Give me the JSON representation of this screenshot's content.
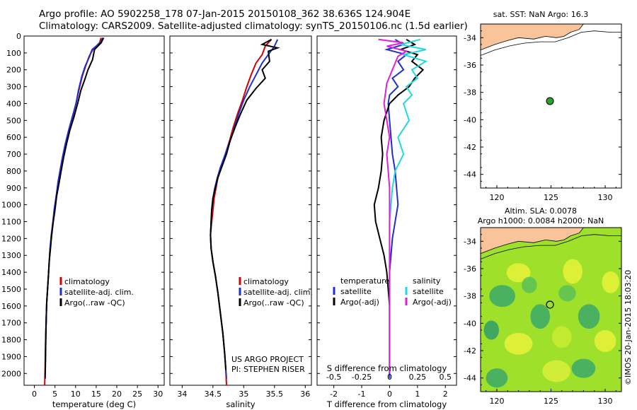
{
  "header": {
    "line1": "Argo profile: AO 5902258_178 07-Jan-2015 20150108_362 38.636S 124.904E",
    "line2": "Climatology: CARS2009. Satellite-adjusted climatology: synTS_20150106.nc (1.5d earlier)"
  },
  "colors": {
    "clim": "#d40000",
    "sat": "#1f2fd0",
    "argo": "#000000",
    "sal_sat": "#22d8e0",
    "sal_argo": "#e020d8",
    "land": "#f9c49a",
    "marker": "#29a329"
  },
  "chart_data": [
    {
      "type": "line",
      "id": "temperature",
      "xlabel": "temperature (deg C)",
      "ylabel": "",
      "xlim": [
        -2.5,
        31.5
      ],
      "ylim": [
        2070,
        0
      ],
      "xticks": [
        "0",
        "5",
        "10",
        "15",
        "20",
        "25",
        "30"
      ],
      "xtick_values": [
        0,
        5,
        10,
        15,
        20,
        25,
        30
      ],
      "yticks": [
        "0",
        "100",
        "200",
        "300",
        "400",
        "500",
        "600",
        "700",
        "800",
        "900",
        "1000",
        "1100",
        "1200",
        "1300",
        "1400",
        "1500",
        "1600",
        "1700",
        "1800",
        "1900",
        "2000"
      ],
      "ytick_values": [
        0,
        100,
        200,
        300,
        400,
        500,
        600,
        700,
        800,
        900,
        1000,
        1100,
        1200,
        1300,
        1400,
        1500,
        1600,
        1700,
        1800,
        1900,
        2000
      ],
      "legend": [
        "climatology",
        "satellite-adj. clim.",
        "Argo(..raw -QC)"
      ],
      "series": [
        {
          "name": "climatology",
          "color_key": "clim",
          "x": [
            16.2,
            15.8,
            14.2,
            13.3,
            12.4,
            11.6,
            10.8,
            10.1,
            9.3,
            8.4,
            7.6,
            6.9,
            6.3,
            5.8,
            5.3,
            4.9,
            4.5,
            4.2,
            3.8,
            3.6,
            3.4,
            3.2,
            3.0,
            2.9,
            2.8,
            2.7,
            2.65,
            2.6,
            2.55,
            2.5
          ],
          "y": [
            10,
            40,
            80,
            120,
            180,
            240,
            320,
            400,
            480,
            560,
            640,
            720,
            800,
            870,
            950,
            1030,
            1100,
            1180,
            1260,
            1340,
            1420,
            1500,
            1580,
            1660,
            1740,
            1820,
            1900,
            1980,
            2030,
            2070
          ]
        },
        {
          "name": "satellite-adj. clim.",
          "color_key": "sat",
          "x": [
            16.6,
            16.0,
            14.0,
            13.4,
            12.3,
            11.5,
            10.7,
            10.1,
            9.2,
            8.3,
            7.5,
            6.8,
            6.2,
            5.7,
            5.3,
            4.8,
            4.5,
            4.1,
            3.8,
            3.6,
            3.4,
            3.2,
            3.0,
            2.9,
            2.8,
            2.75,
            2.7,
            2.65,
            2.6
          ],
          "y": [
            10,
            40,
            80,
            120,
            180,
            240,
            320,
            400,
            480,
            560,
            640,
            720,
            800,
            870,
            950,
            1030,
            1100,
            1180,
            1260,
            1340,
            1420,
            1500,
            1580,
            1660,
            1740,
            1820,
            1900,
            1980,
            2030
          ]
        },
        {
          "name": "Argo(..raw -QC)",
          "color_key": "argo",
          "x": [
            16.8,
            16.2,
            14.6,
            14.1,
            13.0,
            12.2,
            11.3,
            10.5,
            9.6,
            8.6,
            7.8,
            7.1,
            6.5,
            6.0,
            5.4,
            5.0,
            4.6,
            4.2,
            3.9,
            3.6,
            3.4,
            3.2,
            3.0,
            2.9,
            2.8,
            2.75,
            2.7,
            2.65,
            2.6
          ],
          "y": [
            10,
            40,
            80,
            140,
            200,
            260,
            320,
            400,
            480,
            560,
            640,
            720,
            800,
            870,
            950,
            1030,
            1100,
            1180,
            1260,
            1340,
            1420,
            1500,
            1580,
            1660,
            1740,
            1820,
            1900,
            1980,
            2030
          ]
        }
      ]
    },
    {
      "type": "line",
      "id": "salinity",
      "xlabel": "salinity",
      "xlim": [
        33.8,
        36.1
      ],
      "ylim": [
        2070,
        0
      ],
      "xticks": [
        "34",
        "34.5",
        "35",
        "35.5",
        "36"
      ],
      "xtick_values": [
        34,
        34.5,
        35,
        35.5,
        36
      ],
      "legend": [
        "climatology",
        "satellite-adj. clim.",
        "Argo(..raw -QC)"
      ],
      "note": [
        "US ARGO PROJECT",
        "PI: STEPHEN RISER"
      ],
      "series": [
        {
          "name": "climatology",
          "color_key": "clim",
          "x": [
            35.45,
            35.35,
            35.3,
            35.2,
            35.12,
            35.05,
            34.98,
            34.9,
            34.83,
            34.77,
            34.7,
            34.63,
            34.58,
            34.55,
            34.52,
            34.5,
            34.48,
            34.46,
            34.47,
            34.5,
            34.54,
            34.58,
            34.62,
            34.66,
            34.69,
            34.71,
            34.72
          ],
          "y": [
            20,
            60,
            110,
            160,
            230,
            300,
            380,
            460,
            540,
            620,
            700,
            780,
            840,
            900,
            960,
            1030,
            1100,
            1180,
            1260,
            1340,
            1420,
            1520,
            1640,
            1760,
            1880,
            1980,
            2070
          ]
        },
        {
          "name": "satellite-adj. clim.",
          "color_key": "sat",
          "x": [
            35.55,
            35.5,
            35.4,
            35.3,
            35.2,
            35.1,
            35.0,
            34.92,
            34.85,
            34.78,
            34.7,
            34.62,
            34.57,
            34.53,
            34.5,
            34.48,
            34.47,
            34.46,
            34.47,
            34.5,
            34.54,
            34.58,
            34.62,
            34.66,
            34.69,
            34.71,
            34.72
          ],
          "y": [
            20,
            60,
            110,
            160,
            230,
            300,
            380,
            460,
            540,
            620,
            700,
            780,
            840,
            900,
            960,
            1030,
            1100,
            1180,
            1260,
            1340,
            1420,
            1520,
            1640,
            1760,
            1880,
            1980,
            2030
          ]
        },
        {
          "name": "Argo(..raw -QC)",
          "color_key": "argo",
          "x": [
            35.45,
            35.3,
            35.55,
            35.4,
            35.42,
            35.3,
            35.35,
            35.2,
            35.05,
            34.95,
            34.86,
            34.78,
            34.72,
            34.64,
            34.58,
            34.54,
            34.5,
            34.48,
            34.47,
            34.46,
            34.47,
            34.5,
            34.54,
            34.58,
            34.62,
            34.66,
            34.69,
            34.71
          ],
          "y": [
            20,
            50,
            70,
            90,
            150,
            200,
            250,
            310,
            380,
            460,
            540,
            620,
            700,
            780,
            840,
            900,
            960,
            1030,
            1100,
            1180,
            1260,
            1340,
            1420,
            1520,
            1640,
            1760,
            1880,
            1980
          ]
        }
      ]
    },
    {
      "type": "line",
      "id": "difference",
      "xlabel": "T difference from climatology",
      "xlabel_top": "S difference from climatology",
      "xlim": [
        -2.6,
        2.4
      ],
      "ylim": [
        2070,
        0
      ],
      "xticks": [
        "-2",
        "-1",
        "0",
        "1",
        "2"
      ],
      "xtick_values": [
        -2,
        -1,
        0,
        1,
        2
      ],
      "sticks": [
        "-0.5",
        "-0.25",
        "0",
        "0.25",
        "0.5"
      ],
      "stick_values": [
        -2,
        -1,
        0,
        1,
        2
      ],
      "legend_t_title": "temperature",
      "legend_s_title": "salinity",
      "legend": [
        "satellite",
        "Argo(-adj)",
        "satellite",
        "Argo(-adj)"
      ],
      "series": [
        {
          "name": "T satellite",
          "color_key": "sat",
          "x": [
            0.2,
            0.5,
            -0.1,
            0.6,
            0.3,
            0.5,
            0.1,
            0.3,
            0.0,
            -0.05,
            0.0,
            0.05,
            0.1,
            0.2,
            0.25,
            0.3,
            0.2,
            0.1,
            0.05,
            0.0,
            0.0,
            0.0,
            0.0,
            0.0,
            0.0,
            0.0,
            0.0
          ],
          "y": [
            20,
            50,
            80,
            110,
            150,
            200,
            250,
            300,
            350,
            400,
            500,
            600,
            700,
            800,
            900,
            1000,
            1100,
            1200,
            1300,
            1400,
            1500,
            1600,
            1700,
            1800,
            1900,
            2000,
            2030
          ]
        },
        {
          "name": "T Argo(-adj)",
          "color_key": "argo",
          "x": [
            0.6,
            0.9,
            0.4,
            1.0,
            0.8,
            1.2,
            0.9,
            0.7,
            0.3,
            0.0,
            -0.2,
            -0.3,
            -0.25,
            -0.3,
            -0.4,
            -0.55,
            -0.5,
            -0.35,
            -0.2,
            -0.1,
            -0.05,
            0.0,
            0.0,
            0.0,
            0.0,
            0.0
          ],
          "y": [
            20,
            50,
            80,
            110,
            150,
            200,
            250,
            300,
            350,
            400,
            500,
            600,
            700,
            800,
            900,
            1000,
            1100,
            1200,
            1300,
            1400,
            1500,
            1600,
            1700,
            1800,
            1900,
            2000
          ]
        },
        {
          "name": "S satellite",
          "color_key": "sal_sat",
          "x": [
            1.1,
            0.4,
            1.3,
            0.5,
            1.3,
            0.8,
            1.0,
            0.6,
            0.8,
            0.5,
            0.7,
            0.3,
            0.5,
            0.2,
            0.1,
            0.05,
            0.0,
            0.0,
            0.0,
            0.0,
            0.0,
            0.0,
            0.0,
            0.0
          ],
          "y": [
            20,
            50,
            80,
            110,
            150,
            200,
            250,
            300,
            350,
            400,
            500,
            600,
            700,
            800,
            900,
            1000,
            1100,
            1200,
            1300,
            1400,
            1500,
            1600,
            1800,
            2000
          ]
        },
        {
          "name": "S Argo(-adj)",
          "color_key": "sal_argo",
          "x": [
            -0.4,
            0.5,
            -0.1,
            0.6,
            0.3,
            0.2,
            0.1,
            -0.1,
            -0.2,
            -0.1,
            0.0,
            -0.1,
            -0.05,
            0.0,
            0.0,
            0.0,
            0.0,
            0.0,
            0.0
          ],
          "y": [
            20,
            40,
            60,
            90,
            120,
            160,
            200,
            280,
            400,
            500,
            600,
            700,
            800,
            900,
            1000,
            1200,
            1400,
            1700,
            2000
          ]
        }
      ]
    },
    {
      "type": "scatter",
      "id": "sst-map",
      "title": "sat. SST: NaN Argo: 16.3",
      "xlim": [
        118.5,
        131.5
      ],
      "ylim": [
        -45,
        -33
      ],
      "xticks": [
        "120",
        "125",
        "130"
      ],
      "xtick_values": [
        120,
        125,
        130
      ],
      "yticks": [
        "-34",
        "-36",
        "-38",
        "-40",
        "-42",
        "-44"
      ],
      "ytick_values": [
        -34,
        -36,
        -38,
        -40,
        -42,
        -44
      ],
      "point": {
        "lon": 124.904,
        "lat": -38.636
      }
    },
    {
      "type": "heatmap",
      "id": "sla-map",
      "title1": "Altim. SLA: 0.0078",
      "title2": "Argo h1000: 0.0084 h2000: NaN",
      "xlim": [
        118.5,
        131.5
      ],
      "ylim": [
        -45,
        -33
      ],
      "xticks": [
        "120",
        "125",
        "130"
      ],
      "xtick_values": [
        120,
        125,
        130
      ],
      "yticks": [
        "-34",
        "-36",
        "-38",
        "-40",
        "-42",
        "-44"
      ],
      "ytick_values": [
        -34,
        -36,
        -38,
        -40,
        -42,
        -44
      ],
      "point": {
        "lon": 124.904,
        "lat": -38.636
      }
    }
  ],
  "stamp": "©IMOS 20-Jan-2015 18:03:20"
}
